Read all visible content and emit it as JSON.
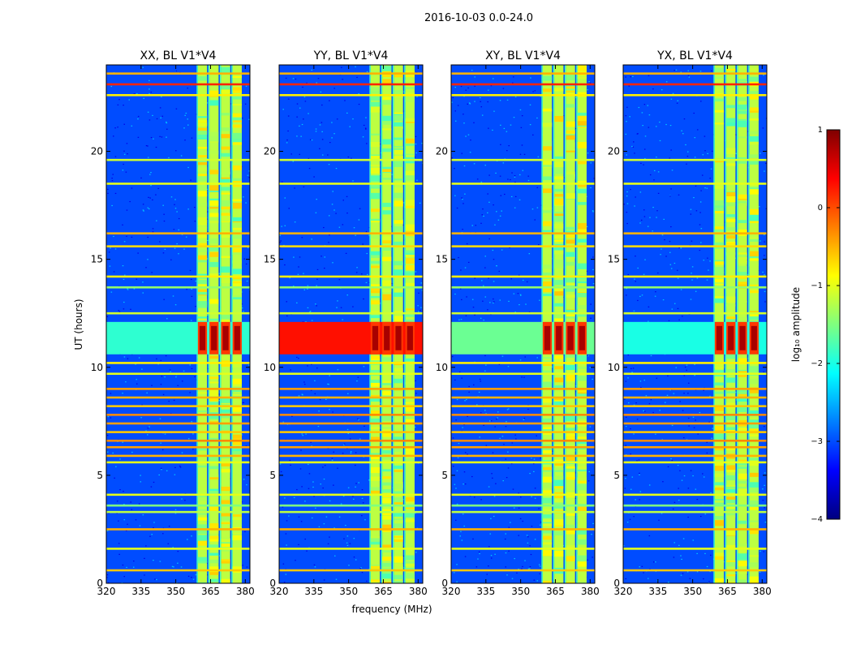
{
  "figure": {
    "suptitle": "2016-10-03 0.0-24.0",
    "xlabel": "frequency (MHz)",
    "ylabel": "UT (hours)"
  },
  "colorbar": {
    "label": "log₁₀ amplitude",
    "ticks": [
      1,
      0,
      -1,
      -2,
      -3,
      -4
    ],
    "tick_labels": [
      "1",
      "0",
      "−1",
      "−2",
      "−3",
      "−4"
    ],
    "range": [
      -4,
      1
    ],
    "colormap": "jet",
    "colors": [
      "#00007f",
      "#0000ff",
      "#007fff",
      "#00ffff",
      "#7fff7f",
      "#ffff00",
      "#ff7f00",
      "#ff0000",
      "#7f0000"
    ]
  },
  "chart_data": {
    "type": "heatmap",
    "xlim": [
      320,
      382
    ],
    "ylim": [
      0,
      24
    ],
    "xticks": [
      320,
      335,
      350,
      365,
      380
    ],
    "xtick_labels": [
      "320",
      "335",
      "350",
      "365",
      "380"
    ],
    "yticks": [
      0,
      5,
      10,
      15,
      20
    ],
    "ytick_labels": [
      "0",
      "5",
      "10",
      "15",
      "20"
    ],
    "panels": [
      {
        "title": "XX, BL V1*V4",
        "background_level": -3.0,
        "broadband_burst_level": -1.9
      },
      {
        "title": "YY, BL V1*V4",
        "background_level": -3.0,
        "broadband_burst_level": 0.3
      },
      {
        "title": "XY, BL V1*V4",
        "background_level": -3.0,
        "broadband_burst_level": -1.6
      },
      {
        "title": "YX, BL V1*V4",
        "background_level": -3.0,
        "broadband_burst_level": -2.0
      }
    ],
    "signal_band_mhz": [
      359,
      379
    ],
    "sub_bands_mhz": [
      [
        359,
        364
      ],
      [
        364,
        369
      ],
      [
        369,
        374
      ],
      [
        374,
        379
      ]
    ],
    "signal_level": -1.2,
    "burst_time_ut": [
      10.6,
      12.1
    ],
    "burst_peak_level": 0.8,
    "rfi_time_bands_ut": [
      {
        "t": 0.6,
        "level": -0.6
      },
      {
        "t": 1.6,
        "level": -1.0
      },
      {
        "t": 2.5,
        "level": -0.5
      },
      {
        "t": 3.3,
        "level": -1.2
      },
      {
        "t": 3.6,
        "level": -1.5
      },
      {
        "t": 4.1,
        "level": -1.0
      },
      {
        "t": 5.6,
        "level": -1.0
      },
      {
        "t": 5.9,
        "level": -0.5
      },
      {
        "t": 6.3,
        "level": -0.4
      },
      {
        "t": 6.6,
        "level": -0.3
      },
      {
        "t": 7.0,
        "level": -0.6
      },
      {
        "t": 7.4,
        "level": -0.4
      },
      {
        "t": 7.8,
        "level": -0.3
      },
      {
        "t": 8.2,
        "level": -0.6
      },
      {
        "t": 8.6,
        "level": -0.5
      },
      {
        "t": 9.0,
        "level": -0.4
      },
      {
        "t": 9.7,
        "level": -1.0
      },
      {
        "t": 10.2,
        "level": -0.8
      },
      {
        "t": 12.5,
        "level": -1.1
      },
      {
        "t": 13.7,
        "level": -1.4
      },
      {
        "t": 14.2,
        "level": -0.8
      },
      {
        "t": 15.6,
        "level": -0.7
      },
      {
        "t": 16.2,
        "level": -0.5
      },
      {
        "t": 18.5,
        "level": -1.0
      },
      {
        "t": 19.6,
        "level": -1.1
      },
      {
        "t": 22.6,
        "level": -0.8
      },
      {
        "t": 23.1,
        "level": 0.2
      },
      {
        "t": 23.6,
        "level": -0.5
      }
    ]
  }
}
